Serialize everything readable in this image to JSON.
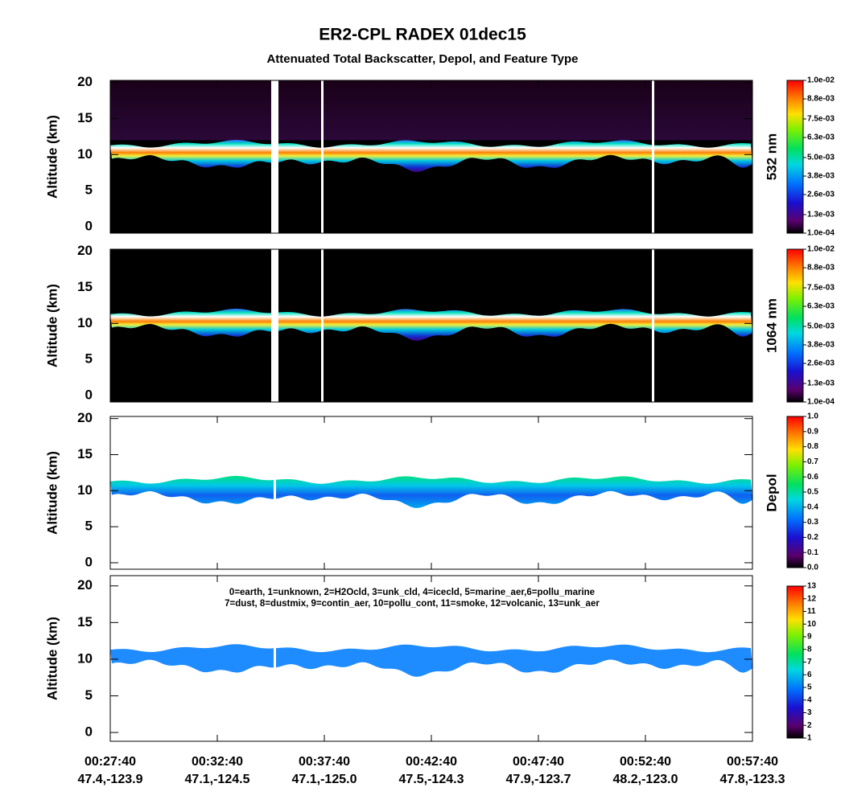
{
  "chart_data": [
    {
      "type": "heatmap",
      "title": "ER2-CPL RADEX 01dec15",
      "subtitle": "Attenuated Total Backscatter, Depol, and Feature Type",
      "ylabel": "Altitude (km)",
      "ylim": [
        -0.9,
        20.3
      ],
      "yticks": [
        0,
        5,
        10,
        15,
        20
      ],
      "colorbar_label": "532 nm",
      "clim": [
        0.0001,
        0.01
      ],
      "cticks": [
        {
          "value": 0.0001,
          "label": "1.0e-04"
        },
        {
          "value": 0.0013,
          "label": "1.3e-03"
        },
        {
          "value": 0.0026,
          "label": "2.6e-03"
        },
        {
          "value": 0.0038,
          "label": "3.8e-03"
        },
        {
          "value": 0.005,
          "label": "5.0e-03"
        },
        {
          "value": 0.0063,
          "label": "6.3e-03"
        },
        {
          "value": 0.0075,
          "label": "7.5e-03"
        },
        {
          "value": 0.0088,
          "label": "8.8e-03"
        },
        {
          "value": 0.01,
          "label": "1.0e-02"
        }
      ]
    },
    {
      "type": "heatmap",
      "ylabel": "Altitude (km)",
      "ylim": [
        -0.9,
        20.3
      ],
      "yticks": [
        0,
        5,
        10,
        15,
        20
      ],
      "colorbar_label": "1064 nm",
      "clim": [
        0.0001,
        0.01
      ],
      "cticks": [
        {
          "value": 0.0001,
          "label": "1.0e-04"
        },
        {
          "value": 0.0013,
          "label": "1.3e-03"
        },
        {
          "value": 0.0026,
          "label": "2.6e-03"
        },
        {
          "value": 0.0038,
          "label": "3.8e-03"
        },
        {
          "value": 0.005,
          "label": "5.0e-03"
        },
        {
          "value": 0.0063,
          "label": "6.3e-03"
        },
        {
          "value": 0.0075,
          "label": "7.5e-03"
        },
        {
          "value": 0.0088,
          "label": "8.8e-03"
        },
        {
          "value": 0.01,
          "label": "1.0e-02"
        }
      ]
    },
    {
      "type": "heatmap",
      "ylabel": "Altitude (km)",
      "ylim": [
        -0.9,
        20.3
      ],
      "yticks": [
        0,
        5,
        10,
        15,
        20
      ],
      "colorbar_label": "Depol",
      "clim": [
        0,
        1
      ],
      "cticks": [
        {
          "value": 0,
          "label": "0.0"
        },
        0.1,
        0.2,
        0.3,
        0.4,
        0.5,
        0.6,
        0.7,
        0.8,
        0.9,
        {
          "value": 1,
          "label": "1.0"
        }
      ]
    },
    {
      "type": "heatmap",
      "ylabel": "Altitude (km)",
      "ylim": [
        -1.2,
        21.4
      ],
      "yticks": [
        0,
        5,
        10,
        15,
        20
      ],
      "clim": [
        1,
        13
      ],
      "cticks": [
        1,
        2,
        3,
        4,
        5,
        6,
        7,
        8,
        9,
        10,
        11,
        12,
        13
      ],
      "annotations": [
        "0=earth, 1=unknown, 2=H2Ocld, 3=unk_cld, 4=icecld, 5=marine_aer,6=pollu_marine",
        "7=dust, 8=dustmix, 9=contin_aer, 10=pollu_cont, 11=smoke, 12=volcanic, 13=unk_aer"
      ],
      "x_tick_labels": [
        "00:27:40",
        "00:32:40",
        "00:37:40",
        "00:42:40",
        "00:47:40",
        "00:52:40",
        "00:57:40"
      ],
      "x_tick_sublabels": [
        "47.4,-123.9",
        "47.1,-124.5",
        "47.1,-125.0",
        "47.5,-124.3",
        "47.9,-123.7",
        "48.2,-123.0",
        "47.8,-123.3"
      ]
    }
  ]
}
